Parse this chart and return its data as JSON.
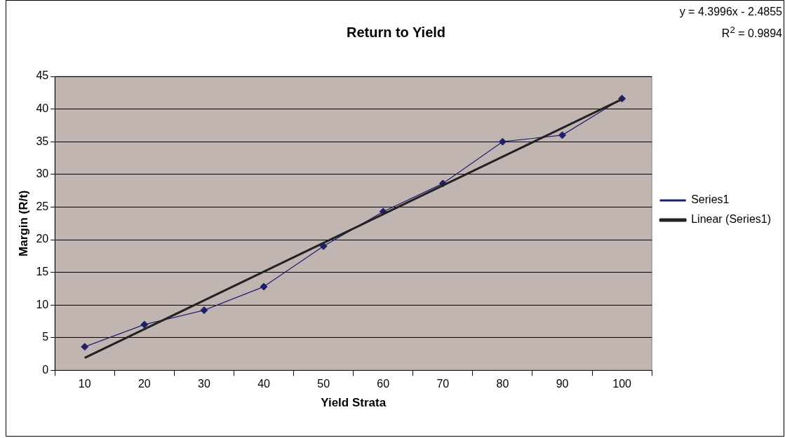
{
  "chart_data": {
    "type": "line",
    "title": "Return to Yield",
    "xlabel": "Yield Strata",
    "ylabel": "Margin (R/t)",
    "categories": [
      "10",
      "20",
      "30",
      "40",
      "50",
      "60",
      "70",
      "80",
      "90",
      "100"
    ],
    "series": [
      {
        "name": "Series1",
        "color": "#1f1f6e",
        "values": [
          3.6,
          7,
          9.2,
          12.8,
          19,
          24.3,
          28.6,
          35,
          36,
          41.6
        ],
        "marker": "diamond"
      },
      {
        "name": "Linear (Series1)",
        "type": "line",
        "color": "#222222",
        "x": [
          "10",
          "20",
          "30",
          "40",
          "50",
          "60",
          "70",
          "80",
          "90",
          "100"
        ],
        "values": [
          1.9,
          6.3,
          10.7,
          15.1,
          19.5,
          23.9,
          28.3,
          32.7,
          37.1,
          41.5
        ],
        "marker": "none"
      }
    ],
    "ylim": [
      0,
      45
    ],
    "yticks": [
      0,
      5,
      10,
      15,
      20,
      25,
      30,
      35,
      40,
      45
    ],
    "grid": "y",
    "legend": "right",
    "annotations": [
      "y = 4.3996x - 2.4855",
      "R$^{2}$ = 0.9894"
    ]
  }
}
